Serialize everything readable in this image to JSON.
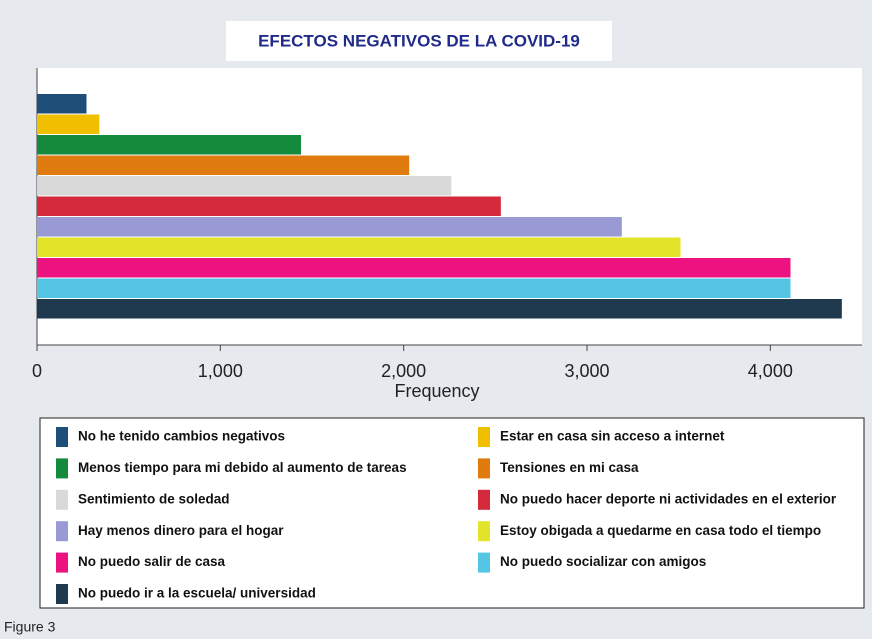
{
  "chart_data": {
    "type": "bar",
    "orientation": "horizontal",
    "title": "EFECTOS NEGATIVOS DE LA COVID-19",
    "x_label": "Frequency",
    "caption": "Figure 3",
    "categories": [
      "No he tenido cambios negativos",
      "Estar en casa sin acceso a internet",
      "Menos tiempo para mi debido al aumento de tareas",
      "Tensiones en mi casa",
      "Sentimiento de soledad",
      "No puedo hacer deporte ni actividades en el exterior",
      "Hay menos dinero para el hogar",
      "Estoy obigada a quedarme en casa todo el tiempo",
      "No puedo salir de casa",
      "No puedo socializar con amigos",
      "No puedo ir a la escuela/ universidad"
    ],
    "values": [
      270,
      340,
      1440,
      2030,
      2260,
      2530,
      3190,
      3510,
      4110,
      4110,
      4390
    ],
    "colors": [
      "#1f4e79",
      "#f0c000",
      "#138a3c",
      "#e07b10",
      "#d9d9d9",
      "#d42a3c",
      "#9999d6",
      "#e3e32a",
      "#ec1380",
      "#55c5e6",
      "#1f3a4f"
    ],
    "xlim": [
      0,
      4500
    ],
    "xticks": [
      0,
      {
        "value": 1000,
        "label": "1,000"
      },
      {
        "value": 2000,
        "label": "2,000"
      },
      {
        "value": 3000,
        "label": "3,000"
      },
      {
        "value": 4000,
        "label": "4,000"
      }
    ],
    "grid": false
  }
}
